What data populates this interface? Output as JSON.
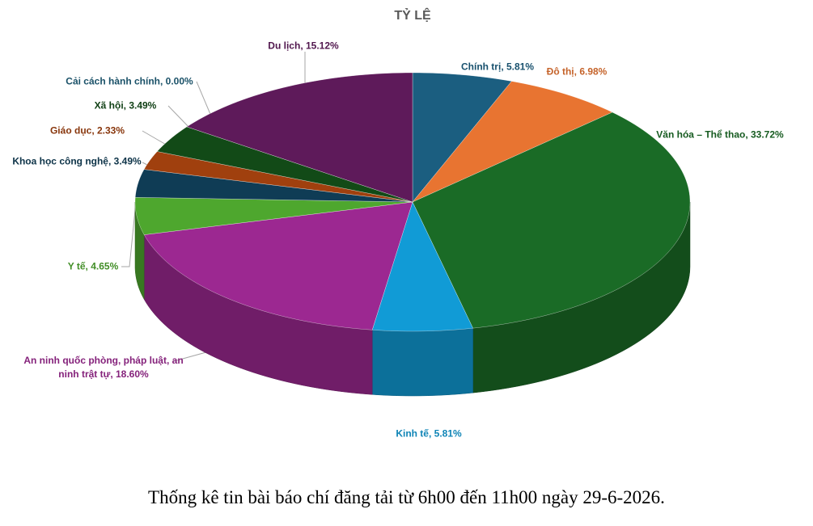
{
  "chart_data": {
    "type": "pie3d",
    "title": "TỶ LỆ",
    "categories": [
      "Chính trị",
      "Đô thị",
      "Văn hóa – Thể thao",
      "Kinh tế",
      "An ninh quốc phòng, pháp luật, an ninh trật tự",
      "Y tế",
      "Khoa học công nghệ",
      "Giáo dục",
      "Xã hội",
      "Cải cách hành chính",
      "Du lịch"
    ],
    "values": [
      5.81,
      6.98,
      33.72,
      5.81,
      18.6,
      4.65,
      3.49,
      2.33,
      3.49,
      0.0,
      15.12
    ],
    "value_labels": [
      "5.81%",
      "6.98%",
      "33.72%",
      "5.81%",
      "18.60%",
      "4.65%",
      "3.49%",
      "2.33%",
      "3.49%",
      "0.00%",
      "15.12%"
    ],
    "colors": [
      "#1b5e80",
      "#e87431",
      "#1a6b26",
      "#119bd6",
      "#9c2891",
      "#4ea72e",
      "#0f3c55",
      "#a0400e",
      "#124a17",
      "#1f5f7a",
      "#5e1a5a"
    ]
  },
  "caption": "Thống kê tin bài báo chí đăng tải từ 6h00 đến 11h00 ngày 29-6-2026."
}
